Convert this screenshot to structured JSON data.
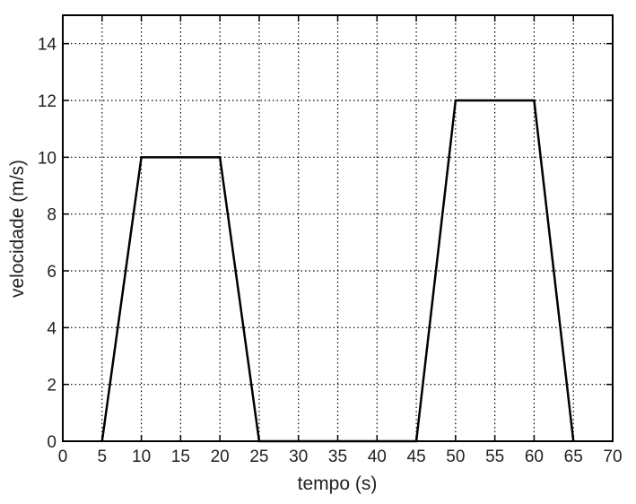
{
  "chart_data": {
    "type": "line",
    "title": "",
    "xlabel": "tempo (s)",
    "ylabel": "velocidade (m/s)",
    "xlim": [
      0,
      70
    ],
    "ylim": [
      0,
      15
    ],
    "xticks": [
      0,
      5,
      10,
      15,
      20,
      25,
      30,
      35,
      40,
      45,
      50,
      55,
      60,
      65,
      70
    ],
    "yticks": [
      0,
      2,
      4,
      6,
      8,
      10,
      12,
      14
    ],
    "grid": true,
    "grid_style": "dotted",
    "line_color": "#000000",
    "series": [
      {
        "x": [
          5,
          10,
          20,
          25,
          45,
          50,
          60,
          65
        ],
        "y": [
          0,
          10,
          10,
          0,
          0,
          12,
          12,
          0
        ]
      }
    ]
  }
}
